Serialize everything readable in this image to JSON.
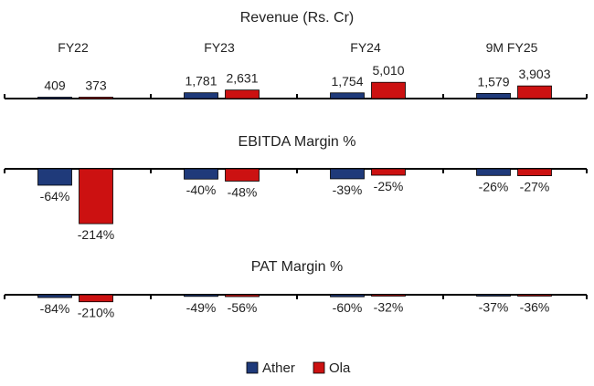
{
  "chart_data": [
    {
      "type": "bar",
      "title": "Revenue (Rs. Cr)",
      "categories": [
        "FY22",
        "FY23",
        "FY24",
        "9M FY25"
      ],
      "series": [
        {
          "name": "Ather",
          "values": [
            409,
            1781,
            1754,
            1579
          ],
          "labels": [
            "409",
            "1,781",
            "1,754",
            "1,579"
          ]
        },
        {
          "name": "Ola",
          "values": [
            373,
            2631,
            5010,
            3903
          ],
          "labels": [
            "373",
            "2,631",
            "5,010",
            "3,903"
          ]
        }
      ]
    },
    {
      "type": "bar",
      "title": "EBITDA Margin %",
      "categories": [
        "FY22",
        "FY23",
        "FY24",
        "9M FY25"
      ],
      "series": [
        {
          "name": "Ather",
          "values": [
            -64,
            -40,
            -39,
            -26
          ],
          "labels": [
            "-64%",
            "-40%",
            "-39%",
            "-26%"
          ]
        },
        {
          "name": "Ola",
          "values": [
            -214,
            -48,
            -25,
            -27
          ],
          "labels": [
            "-214%",
            "-48%",
            "-25%",
            "-27%"
          ]
        }
      ]
    },
    {
      "type": "bar",
      "title": "PAT Margin %",
      "categories": [
        "FY22",
        "FY23",
        "FY24",
        "9M FY25"
      ],
      "series": [
        {
          "name": "Ather",
          "values": [
            -84,
            -49,
            -60,
            -37
          ],
          "labels": [
            "-84%",
            "-49%",
            "-60%",
            "-37%"
          ]
        },
        {
          "name": "Ola",
          "values": [
            -210,
            -56,
            -32,
            -36
          ],
          "labels": [
            "-210%",
            "-56%",
            "-32%",
            "-36%"
          ]
        }
      ]
    }
  ],
  "legend": {
    "position": "bottom",
    "items": [
      {
        "label": "Ather",
        "color": "#1f3a7a"
      },
      {
        "label": "Ola",
        "color": "#cc1111"
      }
    ]
  }
}
